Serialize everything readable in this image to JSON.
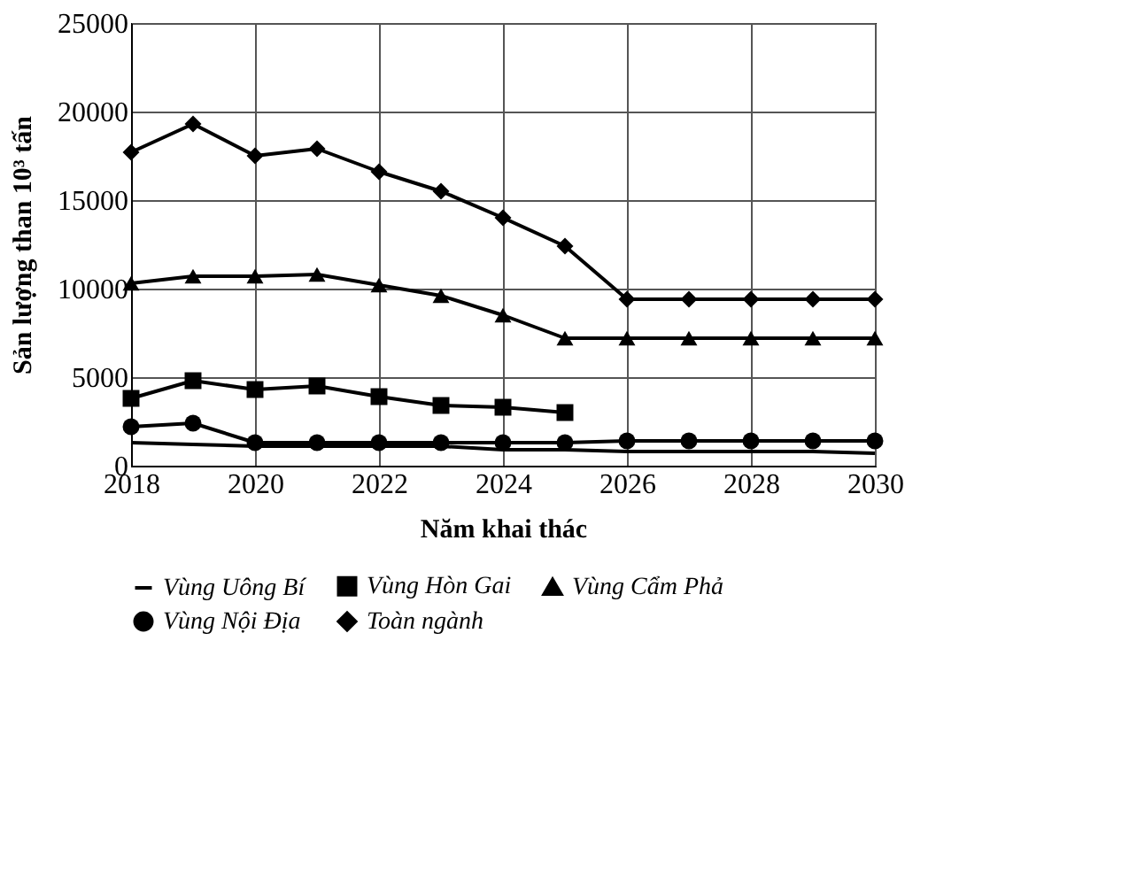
{
  "chart_data": {
    "type": "line",
    "xlabel": "Năm khai thác",
    "ylabel": "Sản lượng than 10³ tấn",
    "x": [
      2018,
      2019,
      2020,
      2021,
      2022,
      2023,
      2024,
      2025,
      2026,
      2027,
      2028,
      2029,
      2030
    ],
    "xlim": [
      2018,
      2030
    ],
    "xticks": [
      2018,
      2020,
      2022,
      2024,
      2026,
      2028,
      2030
    ],
    "ylim": [
      0,
      25000
    ],
    "yticks": [
      0,
      5000,
      10000,
      15000,
      20000,
      25000
    ],
    "grid": true,
    "legend": "bottom",
    "line_style": "solid",
    "series": [
      {
        "name": "Vùng Uông Bí",
        "color": "#000000",
        "marker": "none",
        "values": [
          1300,
          1200,
          1100,
          1100,
          1100,
          1100,
          900,
          900,
          800,
          800,
          800,
          800,
          700
        ]
      },
      {
        "name": "Vùng Hòn Gai",
        "color": "#000000",
        "marker": "square",
        "values": [
          3800,
          4800,
          4300,
          4500,
          3900,
          3400,
          3300,
          3000,
          null,
          null,
          null,
          null,
          null
        ]
      },
      {
        "name": "Vùng Cẩm Phả",
        "color": "#000000",
        "marker": "triangle",
        "values": [
          10300,
          10700,
          10700,
          10800,
          10200,
          9600,
          8500,
          7200,
          7200,
          7200,
          7200,
          7200,
          7200
        ]
      },
      {
        "name": "Vùng Nội Địa",
        "color": "#000000",
        "marker": "circle",
        "values": [
          2200,
          2400,
          1300,
          1300,
          1300,
          1300,
          1300,
          1300,
          1400,
          1400,
          1400,
          1400,
          1400
        ]
      },
      {
        "name": "Toàn ngành",
        "color": "#000000",
        "marker": "diamond",
        "values": [
          17700,
          19300,
          17500,
          17900,
          16600,
          15500,
          14000,
          12400,
          9400,
          9400,
          9400,
          9400,
          9400
        ]
      }
    ]
  }
}
